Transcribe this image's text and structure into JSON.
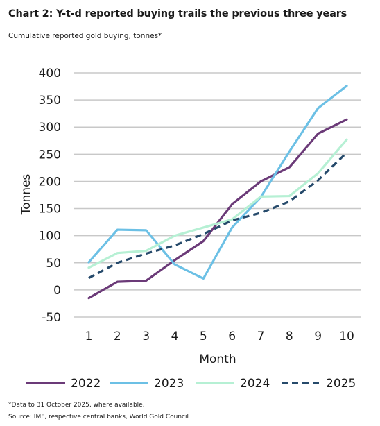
{
  "title": "Chart 2: Y-t-d reported buying trails the previous three years",
  "subtitle": "Cumulative reported gold buying, tonnes*",
  "footnote": "*Data to 31 October 2025, where available.",
  "source": "Source: IMF, respective central banks, World Gold Council",
  "chart_data": {
    "type": "line",
    "title": "Chart 2: Y-t-d reported buying trails the previous three years",
    "subtitle": "Cumulative reported gold buying, tonnes*",
    "xlabel": "Month",
    "ylabel": "Tonnes",
    "x": [
      1,
      2,
      3,
      4,
      5,
      6,
      7,
      8,
      9,
      10
    ],
    "ylim": [
      -50,
      400
    ],
    "yticks": [
      -50,
      0,
      50,
      100,
      150,
      200,
      250,
      300,
      350,
      400
    ],
    "grid": true,
    "legend_position": "bottom",
    "series": [
      {
        "name": "2022",
        "color": "#6b3a78",
        "style": "solid",
        "values": [
          -15,
          15,
          17,
          55,
          90,
          158,
          200,
          226,
          288,
          314
        ]
      },
      {
        "name": "2023",
        "color": "#6cc0e5",
        "style": "solid",
        "values": [
          51,
          111,
          110,
          47,
          21,
          115,
          171,
          255,
          335,
          376
        ]
      },
      {
        "name": "2024",
        "color": "#b6f0d4",
        "style": "solid",
        "values": [
          41,
          68,
          72,
          100,
          115,
          130,
          172,
          173,
          215,
          277
        ]
      },
      {
        "name": "2025",
        "color": "#264a6b",
        "style": "dashed",
        "values": [
          22,
          50,
          67,
          82,
          103,
          128,
          142,
          163,
          202,
          253
        ]
      }
    ]
  }
}
